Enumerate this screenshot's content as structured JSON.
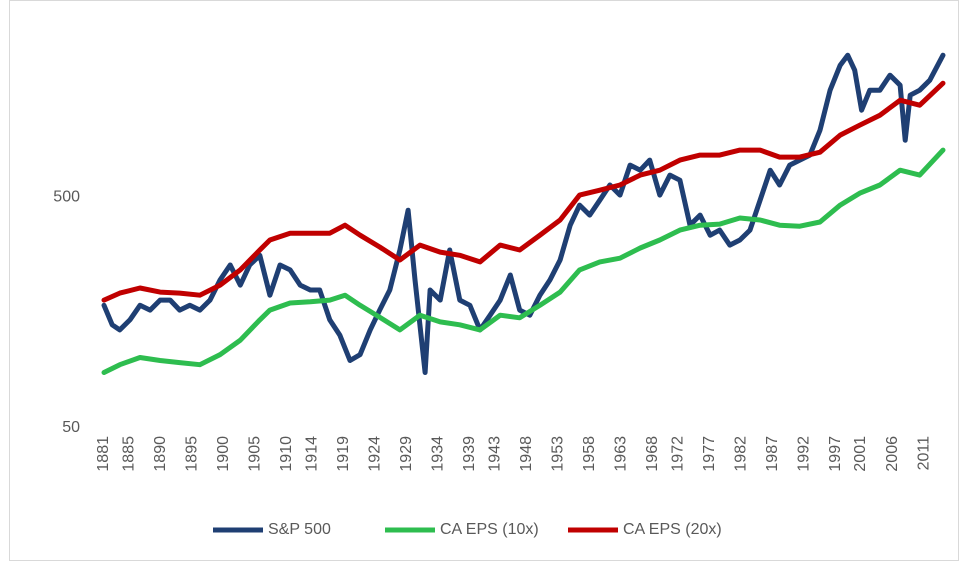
{
  "chart_data": {
    "type": "line",
    "log_scale": true,
    "legend": "bottom",
    "xlim": [
      1881,
      2014
    ],
    "xticks": [
      1881,
      1885,
      1890,
      1895,
      1900,
      1905,
      1910,
      1914,
      1919,
      1924,
      1929,
      1934,
      1939,
      1943,
      1948,
      1953,
      1958,
      1963,
      1968,
      1972,
      1977,
      1982,
      1987,
      1992,
      1997,
      2001,
      2006,
      2011
    ],
    "ylim": [
      50,
      3200
    ],
    "yticks": [
      50,
      500
    ],
    "series": [
      {
        "name": "S&P 500",
        "color": "#1f3f73",
        "x": [
          1881,
          1882.3,
          1883.5,
          1885.1,
          1886.7,
          1888.3,
          1889.9,
          1891.5,
          1893.0,
          1894.6,
          1896.2,
          1897.8,
          1899.4,
          1901.0,
          1902.6,
          1904.1,
          1905.7,
          1907.3,
          1908.9,
          1910.5,
          1912.1,
          1913.7,
          1915.2,
          1916.8,
          1918.4,
          1920.0,
          1921.6,
          1923.2,
          1924.7,
          1926.3,
          1927.9,
          1929.2,
          1930.3,
          1931.9,
          1932.7,
          1934.3,
          1935.8,
          1937.4,
          1939.0,
          1940.6,
          1942.2,
          1943.8,
          1945.4,
          1946.9,
          1948.5,
          1950.1,
          1951.7,
          1953.3,
          1954.9,
          1956.4,
          1958.0,
          1959.6,
          1961.2,
          1962.8,
          1964.4,
          1966.0,
          1967.5,
          1969.1,
          1970.7,
          1972.3,
          1973.9,
          1975.5,
          1977.1,
          1978.6,
          1980.2,
          1981.8,
          1983.4,
          1985.0,
          1986.6,
          1988.1,
          1989.7,
          1991.3,
          1992.9,
          1994.5,
          1996.1,
          1997.7,
          1998.9,
          2000.0,
          2001.1,
          2002.4,
          2004.0,
          2005.6,
          2007.2,
          2008.0,
          2008.8,
          2010.3,
          2011.9,
          2014.0
        ],
        "values": [
          170,
          140,
          133,
          147,
          170,
          162,
          179,
          179,
          162,
          170,
          162,
          179,
          219,
          254,
          208,
          254,
          280,
          188,
          254,
          242,
          208,
          198,
          198,
          147,
          126,
          98,
          104,
          133,
          162,
          198,
          295,
          439,
          219,
          87,
          198,
          179,
          295,
          179,
          170,
          133,
          154,
          179,
          230,
          162,
          154,
          188,
          219,
          267,
          378,
          462,
          418,
          485,
          564,
          510,
          688,
          654,
          723,
          510,
          623,
          592,
          378,
          418,
          342,
          360,
          310,
          326,
          360,
          485,
          654,
          564,
          688,
          723,
          760,
          975,
          1452,
          1864,
          2059,
          1773,
          1190,
          1452,
          1452,
          1687,
          1527,
          882,
          1382,
          1452,
          1605,
          2059
        ]
      },
      {
        "name": "CA EPS (10x)",
        "color": "#2ebd4f",
        "x": [
          1881,
          1883.5,
          1886.7,
          1889.9,
          1893.0,
          1896.2,
          1899.4,
          1902.6,
          1905.7,
          1907.3,
          1910.5,
          1913.7,
          1916.8,
          1919.2,
          1921.6,
          1924.7,
          1927.9,
          1931.1,
          1934.3,
          1937.4,
          1940.6,
          1943.8,
          1946.9,
          1950.1,
          1953.3,
          1956.4,
          1959.6,
          1962.8,
          1966.0,
          1969.1,
          1972.3,
          1975.5,
          1978.6,
          1981.8,
          1985.0,
          1988.1,
          1991.3,
          1994.5,
          1997.7,
          2000.8,
          2004.0,
          2007.2,
          2010.3,
          2014.0
        ],
        "values": [
          87,
          94,
          101,
          98,
          96,
          94,
          104,
          120,
          147,
          162,
          174,
          176,
          179,
          188,
          170,
          151,
          133,
          154,
          144,
          140,
          133,
          154,
          150,
          170,
          194,
          242,
          262,
          272,
          301,
          326,
          360,
          378,
          382,
          406,
          398,
          378,
          374,
          390,
          462,
          520,
          564,
          654,
          623,
          799
        ]
      },
      {
        "name": "CA EPS (20x)",
        "color": "#c00000",
        "x": [
          1881,
          1883.5,
          1886.7,
          1889.9,
          1893.0,
          1896.2,
          1899.4,
          1902.6,
          1905.7,
          1907.3,
          1910.5,
          1913.7,
          1916.8,
          1919.2,
          1921.6,
          1924.7,
          1927.9,
          1931.1,
          1934.3,
          1937.4,
          1940.6,
          1943.8,
          1946.9,
          1950.1,
          1953.3,
          1956.4,
          1959.6,
          1962.8,
          1966.0,
          1969.1,
          1972.3,
          1975.5,
          1978.6,
          1981.8,
          1985.0,
          1988.1,
          1991.3,
          1994.5,
          1997.7,
          2000.8,
          2004.0,
          2007.2,
          2010.3,
          2014.0
        ],
        "values": [
          179,
          192,
          202,
          194,
          192,
          188,
          208,
          242,
          295,
          326,
          349,
          349,
          349,
          378,
          342,
          304,
          267,
          310,
          289,
          280,
          262,
          310,
          295,
          342,
          398,
          510,
          536,
          564,
          623,
          654,
          723,
          760,
          760,
          799,
          799,
          745,
          745,
          783,
          928,
          1025,
          1132,
          1315,
          1251,
          1557
        ]
      }
    ]
  }
}
